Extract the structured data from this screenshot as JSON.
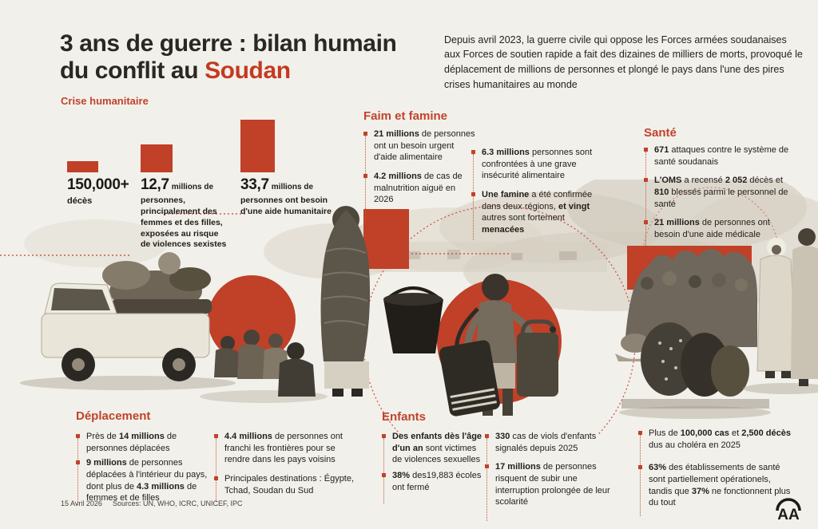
{
  "colors": {
    "background": "#f2f0ea",
    "accent_red": "#c0432c",
    "bar_red": "#c04028",
    "ink": "#211e19"
  },
  "header": {
    "title_line1": "3 ans de guerre : bilan humain",
    "title_line2": "du conflit au ",
    "title_accent": "Soudan",
    "subtitle": "Crise humanitaire",
    "intro": "Depuis avril 2023, la guerre civile qui oppose les Forces armées soudanaises aux Forces de soutien rapide a fait des dizaines de milliers de morts, provoqué le déplacement de millions de personnes et plongé le pays dans l'une des pires crises humanitaires au monde"
  },
  "chart_data": {
    "type": "bar",
    "title": "Crise humanitaire",
    "categories": [
      "Décès",
      "Personnes, principalement des femmes et des filles, exposées au risque de violences sexistes",
      "Personnes ont besoin d'une aide humanitaire"
    ],
    "values": [
      0.15,
      12.7,
      33.7
    ],
    "value_labels": [
      "150,000+",
      "12,7 millions",
      "33,7 millions"
    ],
    "unit": "millions de personnes",
    "xlabel": "",
    "ylabel": "",
    "legend": "none",
    "grid": false
  },
  "bars": [
    {
      "big": "150,000+",
      "unit": "",
      "desc": "décès"
    },
    {
      "big": "12,7",
      "unit": "millions de",
      "desc": "personnes, principalement des femmes et des filles, exposées au risque de violences sexistes"
    },
    {
      "big": "33,7",
      "unit": "millions de",
      "desc": "personnes ont besoin d'une aide humanitaire"
    }
  ],
  "sections": {
    "famine": {
      "title": "Faim et famine",
      "col1": [
        [
          {
            "t": "21 millions",
            "b": true
          },
          {
            "t": " de personnes ont un besoin urgent d'aide alimentaire"
          }
        ],
        [
          {
            "t": "4.2 millions",
            "b": true
          },
          {
            "t": " de cas de malnutrition aiguë en 2026"
          }
        ]
      ],
      "col2": [
        [
          {
            "t": "6.3 millions",
            "b": true
          },
          {
            "t": " personnes sont confrontées à une grave insécurité alimentaire"
          }
        ],
        [
          {
            "t": "Une famine",
            "b": true
          },
          {
            "t": " a été confirmée dans deux régions, "
          },
          {
            "t": "et vingt",
            "b": true
          },
          {
            "t": " autres sont fortement "
          },
          {
            "t": "menacées",
            "b": true
          }
        ]
      ]
    },
    "sante": {
      "title": "Santé",
      "col1": [
        [
          {
            "t": "671",
            "b": true
          },
          {
            "t": " attaques contre le système de santé soudanais"
          }
        ],
        [
          {
            "t": "L'OMS",
            "b": true
          },
          {
            "t": " a recensé "
          },
          {
            "t": "2 052",
            "b": true
          },
          {
            "t": " décès et "
          },
          {
            "t": "810",
            "b": true
          },
          {
            "t": " blessés parmi le personnel de santé"
          }
        ],
        [
          {
            "t": "21 millions",
            "b": true
          },
          {
            "t": " de personnes ont besoin d'une aide médicale"
          }
        ]
      ],
      "col2": [
        [
          {
            "t": "Plus de "
          },
          {
            "t": "100,000 cas",
            "b": true
          },
          {
            "t": " et "
          },
          {
            "t": "2,500 décès",
            "b": true
          },
          {
            "t": " dus au choléra en 2025"
          }
        ],
        [
          {
            "t": "63%",
            "b": true
          },
          {
            "t": " des établissements de santé sont partiellement opérationels, tandis que "
          },
          {
            "t": "37%",
            "b": true
          },
          {
            "t": " ne fonctionnent plus du tout"
          }
        ]
      ]
    },
    "deplacement": {
      "title": "Déplacement",
      "col1": [
        [
          {
            "t": "Près de "
          },
          {
            "t": "14 millions",
            "b": true
          },
          {
            "t": " de personnes déplacées"
          }
        ],
        [
          {
            "t": "9 millions",
            "b": true
          },
          {
            "t": " de personnes déplacées à l'intérieur du pays, dont plus de "
          },
          {
            "t": "4.3 millions",
            "b": true
          },
          {
            "t": " de femmes et de filles"
          }
        ]
      ],
      "col2": [
        [
          {
            "t": "4.4 millions",
            "b": true
          },
          {
            "t": " de personnes ont franchi les frontières pour se rendre dans les pays voisins"
          }
        ],
        [
          {
            "t": "Principales destinations : Égypte, Tchad, Soudan du Sud"
          }
        ]
      ]
    },
    "enfants": {
      "title": "Enfants",
      "col1": [
        [
          {
            "t": "Des enfants dès l'âge d'un an",
            "b": true
          },
          {
            "t": " sont victimes de violences sexuelles"
          }
        ],
        [
          {
            "t": "38%",
            "b": true
          },
          {
            "t": " des19,883 écoles ont fermé"
          }
        ]
      ],
      "col2": [
        [
          {
            "t": "330",
            "b": true
          },
          {
            "t": " cas de viols d'enfants signalés depuis 2025"
          }
        ],
        [
          {
            "t": "17 millions",
            "b": true
          },
          {
            "t": " de personnes risquent de subir une interruption prolongée de leur scolarité"
          }
        ]
      ]
    }
  },
  "footer": {
    "date": "15 Avril 2026",
    "sources": "Sources: UN, WHO, ICRC, UNICEF, IPC",
    "agency_logo": "AA"
  }
}
